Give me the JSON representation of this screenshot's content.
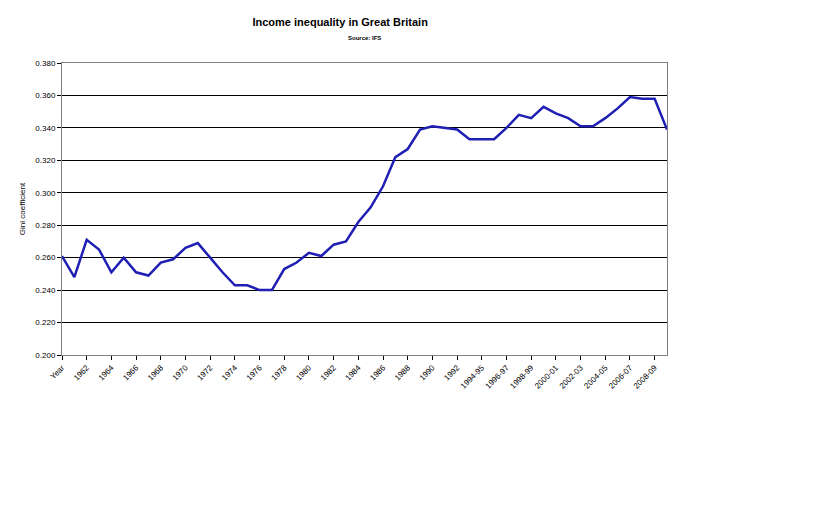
{
  "chart_data": {
    "type": "line",
    "title": "Income inequality in Great Britain",
    "subtitle": "Source: IFS",
    "y_label": "Gini coefficient",
    "categories": [
      "Year",
      null,
      "1962",
      null,
      "1964",
      null,
      "1966",
      null,
      "1968",
      null,
      "1970",
      null,
      "1972",
      null,
      "1974",
      null,
      "1976",
      null,
      "1978",
      null,
      "1980",
      null,
      "1982",
      null,
      "1984",
      null,
      "1986",
      null,
      "1988",
      null,
      "1990",
      null,
      "1992",
      null,
      "1994-95",
      null,
      "1996-97",
      null,
      "1998-99",
      null,
      "2000-01",
      null,
      "2002-03",
      null,
      "2004-05",
      null,
      "2006-07",
      null,
      "2008-09",
      null
    ],
    "values": [
      0.261,
      0.248,
      0.271,
      0.265,
      0.251,
      0.26,
      0.251,
      0.249,
      0.257,
      0.259,
      0.266,
      0.269,
      0.26,
      0.251,
      0.243,
      0.243,
      0.24,
      0.24,
      0.253,
      0.257,
      0.263,
      0.261,
      0.268,
      0.27,
      0.282,
      0.291,
      0.304,
      0.322,
      0.327,
      0.339,
      0.341,
      0.34,
      0.339,
      0.333,
      0.333,
      0.333,
      0.34,
      0.348,
      0.346,
      0.353,
      0.349,
      0.346,
      0.341,
      0.341,
      0.346,
      0.352,
      0.359,
      0.358,
      0.358,
      0.339
    ],
    "color": "#1f1fb4",
    "ylim": [
      0.2,
      0.38
    ],
    "yticks": [
      {
        "value": 0.2,
        "label": "0.200"
      },
      {
        "value": 0.22,
        "label": "0.220"
      },
      {
        "value": 0.24,
        "label": "0.240"
      },
      {
        "value": 0.26,
        "label": "0.260"
      },
      {
        "value": 0.28,
        "label": "0.280"
      },
      {
        "value": 0.3,
        "label": "0.300"
      },
      {
        "value": 0.32,
        "label": "0.320"
      },
      {
        "value": 0.34,
        "label": "0.340"
      },
      {
        "value": 0.36,
        "label": "0.360"
      },
      {
        "value": 0.38,
        "label": "0.380"
      }
    ],
    "grid": true
  }
}
